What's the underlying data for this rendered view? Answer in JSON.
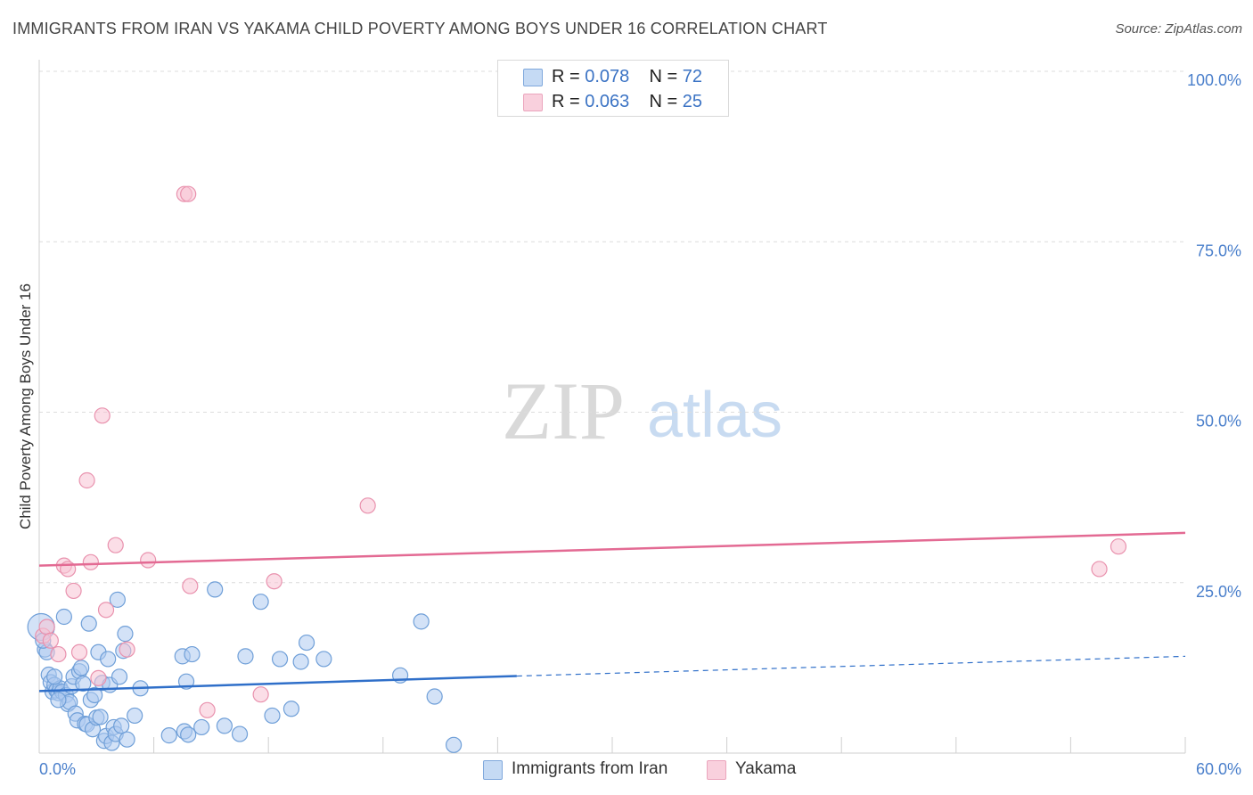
{
  "header": {
    "title": "IMMIGRANTS FROM IRAN VS YAKAMA CHILD POVERTY AMONG BOYS UNDER 16 CORRELATION CHART",
    "source": "Source: ZipAtlas.com"
  },
  "legend": {
    "rows": [
      {
        "r_label": "R =",
        "r_value": "0.078",
        "n_label": "N =",
        "n_value": "72"
      },
      {
        "r_label": "R =",
        "r_value": "0.063",
        "n_label": "N =",
        "n_value": "25"
      }
    ]
  },
  "watermark": {
    "zip": "ZIP",
    "atlas": "atlas"
  },
  "colors": {
    "blue_fill": "#aecbf0",
    "blue_stroke": "#6f9fd8",
    "blue_line": "#2f6fc9",
    "pink_fill": "#f7c3d3",
    "pink_stroke": "#e992ae",
    "pink_line": "#e36a93",
    "tick_label": "#4a7fcb",
    "grid": "#dcdcdc"
  },
  "chart_data": {
    "type": "scatter",
    "title": "IMMIGRANTS FROM IRAN VS YAKAMA CHILD POVERTY AMONG BOYS UNDER 16 CORRELATION CHART",
    "xlabel": "",
    "ylabel": "Child Poverty Among Boys Under 16",
    "xlim": [
      0,
      60
    ],
    "ylim": [
      0,
      100
    ],
    "x_tick_labels": [
      "0.0%",
      "60.0%"
    ],
    "y_tick_labels": [
      "25.0%",
      "50.0%",
      "75.0%",
      "100.0%"
    ],
    "y_ticks": [
      25,
      50,
      75,
      100
    ],
    "grid": true,
    "legend_position": "top-center",
    "series": [
      {
        "name": "Immigrants from Iran",
        "color": "#aecbf0",
        "r": 0.078,
        "n": 72,
        "trend": {
          "x": [
            0,
            25
          ],
          "y": [
            9.1,
            11.3
          ],
          "dashed_to_x": 60,
          "dashed_to_y": 14.2
        },
        "points": [
          [
            0.1,
            18.5
          ],
          [
            0.3,
            15.2
          ],
          [
            0.4,
            14.8
          ],
          [
            0.5,
            11.5
          ],
          [
            0.6,
            10.4
          ],
          [
            0.7,
            9.0
          ],
          [
            0.8,
            10.0
          ],
          [
            0.9,
            9.2
          ],
          [
            1.0,
            8.8
          ],
          [
            1.1,
            9.5
          ],
          [
            1.2,
            9.0
          ],
          [
            1.3,
            20.0
          ],
          [
            1.4,
            8.5
          ],
          [
            1.5,
            7.2
          ],
          [
            1.6,
            7.5
          ],
          [
            1.7,
            9.8
          ],
          [
            1.8,
            11.2
          ],
          [
            1.9,
            5.8
          ],
          [
            2.0,
            4.8
          ],
          [
            2.1,
            12.0
          ],
          [
            2.2,
            12.5
          ],
          [
            2.3,
            10.2
          ],
          [
            2.4,
            4.3
          ],
          [
            2.5,
            4.2
          ],
          [
            2.6,
            19.0
          ],
          [
            2.7,
            7.8
          ],
          [
            2.8,
            3.5
          ],
          [
            2.9,
            8.5
          ],
          [
            3.0,
            5.2
          ],
          [
            3.1,
            14.8
          ],
          [
            3.2,
            5.3
          ],
          [
            3.3,
            10.3
          ],
          [
            3.4,
            1.8
          ],
          [
            3.5,
            2.5
          ],
          [
            3.6,
            13.8
          ],
          [
            3.7,
            10.0
          ],
          [
            3.8,
            1.5
          ],
          [
            3.9,
            3.8
          ],
          [
            4.0,
            2.8
          ],
          [
            4.1,
            22.5
          ],
          [
            4.2,
            11.2
          ],
          [
            4.3,
            4.0
          ],
          [
            4.4,
            15.0
          ],
          [
            4.5,
            17.5
          ],
          [
            4.6,
            2.0
          ],
          [
            5.3,
            9.5
          ],
          [
            5.0,
            5.5
          ],
          [
            6.8,
            2.6
          ],
          [
            7.6,
            3.2
          ],
          [
            7.5,
            14.2
          ],
          [
            7.7,
            10.5
          ],
          [
            7.8,
            2.7
          ],
          [
            8.0,
            14.5
          ],
          [
            8.5,
            3.8
          ],
          [
            9.2,
            24.0
          ],
          [
            9.7,
            4.0
          ],
          [
            10.5,
            2.8
          ],
          [
            10.8,
            14.2
          ],
          [
            11.6,
            22.2
          ],
          [
            12.2,
            5.5
          ],
          [
            12.6,
            13.8
          ],
          [
            13.2,
            6.5
          ],
          [
            13.7,
            13.4
          ],
          [
            14.0,
            16.2
          ],
          [
            14.9,
            13.8
          ],
          [
            18.9,
            11.4
          ],
          [
            20.0,
            19.3
          ],
          [
            20.7,
            8.3
          ],
          [
            21.7,
            1.2
          ],
          [
            0.2,
            16.5
          ],
          [
            1.0,
            7.8
          ],
          [
            0.8,
            11.2
          ]
        ]
      },
      {
        "name": "Yakama",
        "color": "#f7c3d3",
        "r": 0.063,
        "n": 25,
        "trend": {
          "x": [
            0,
            60
          ],
          "y": [
            27.5,
            32.3
          ]
        },
        "points": [
          [
            0.2,
            17.2
          ],
          [
            0.4,
            18.5
          ],
          [
            0.6,
            16.5
          ],
          [
            1.0,
            14.5
          ],
          [
            1.3,
            27.5
          ],
          [
            1.5,
            27.0
          ],
          [
            1.8,
            23.8
          ],
          [
            2.1,
            14.8
          ],
          [
            2.5,
            40.0
          ],
          [
            2.7,
            28.0
          ],
          [
            3.1,
            11.0
          ],
          [
            3.3,
            49.5
          ],
          [
            3.5,
            21.0
          ],
          [
            4.0,
            30.5
          ],
          [
            4.6,
            15.2
          ],
          [
            5.7,
            28.3
          ],
          [
            7.6,
            82.0
          ],
          [
            7.8,
            82.0
          ],
          [
            7.9,
            24.5
          ],
          [
            8.8,
            6.3
          ],
          [
            11.6,
            8.6
          ],
          [
            12.3,
            25.2
          ],
          [
            17.2,
            36.3
          ],
          [
            55.5,
            27.0
          ],
          [
            56.5,
            30.3
          ]
        ]
      }
    ]
  }
}
